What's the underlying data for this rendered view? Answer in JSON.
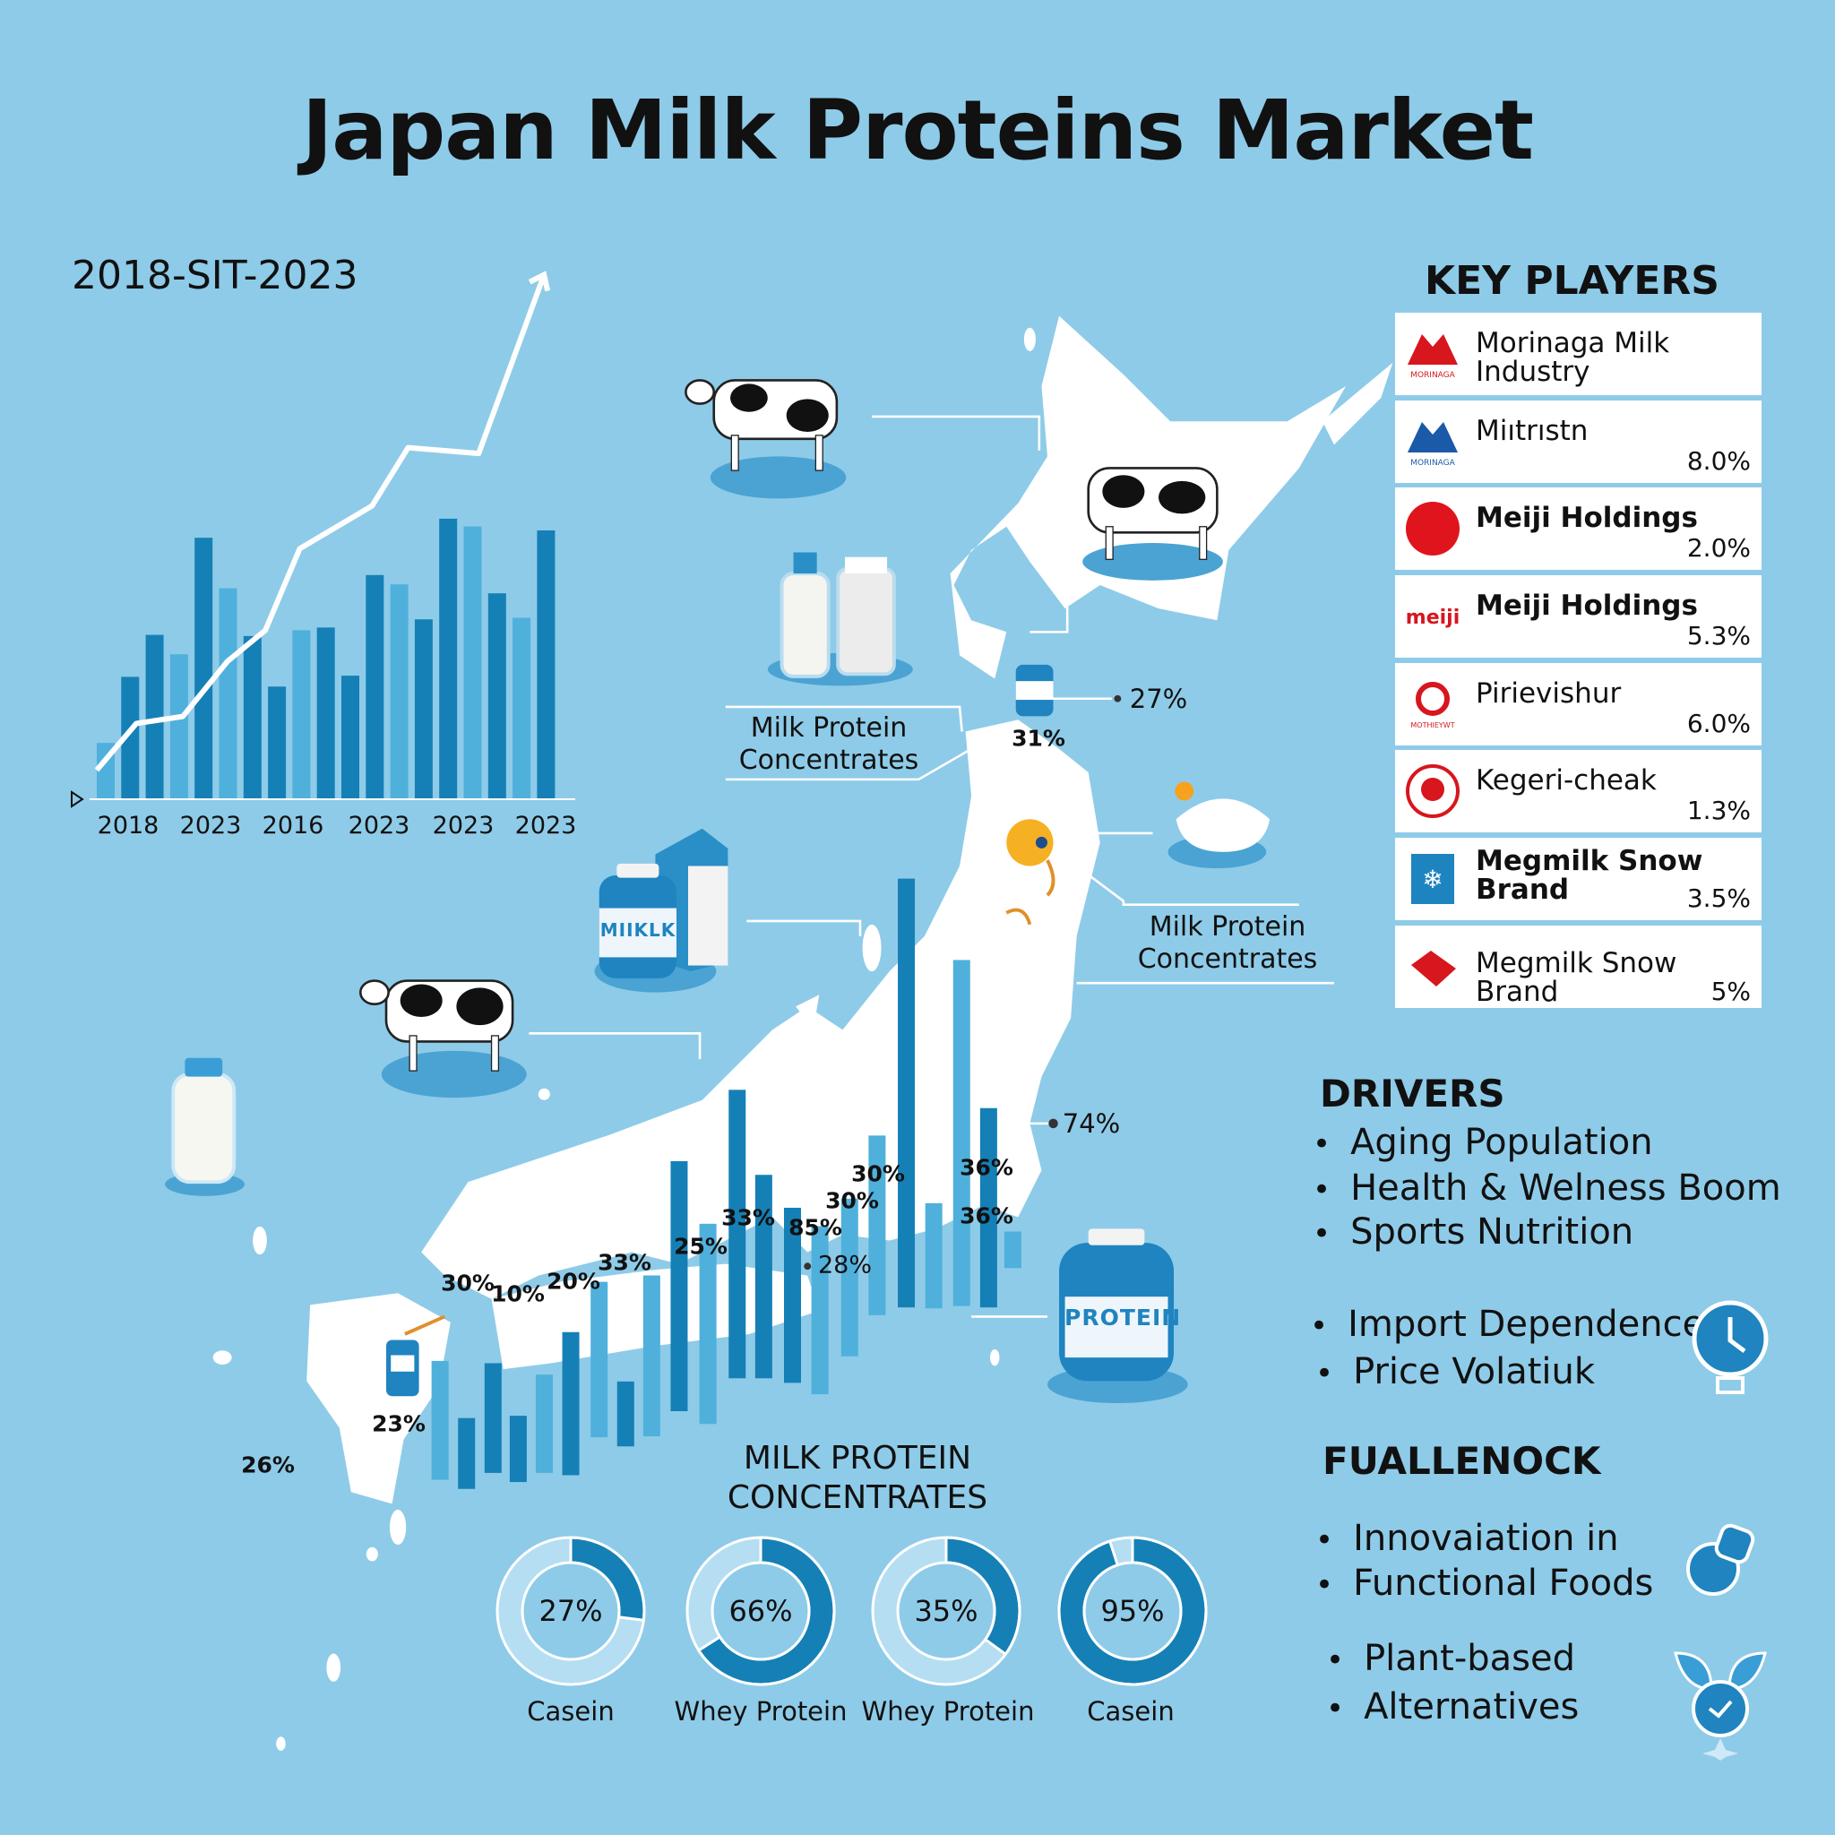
{
  "title": "Japan Milk Proteins Market",
  "colors": {
    "background": "#8ecbe8",
    "dark_bar": "#1580b6",
    "light_bar": "#4fb0dc",
    "map": "#ffffff",
    "text": "#111111",
    "logo_red": "#d7161e",
    "logo_blue": "#1a5aa8"
  },
  "chart_data": [
    {
      "type": "bar",
      "title": "2018-SIT-2023",
      "tick_labels": [
        "2018",
        "2023",
        "2016",
        "2023",
        "2023",
        "2023"
      ],
      "values": [
        14.5,
        31.5,
        42.3,
        37.3,
        67.3,
        54.3,
        42,
        29,
        43.5,
        44.2,
        31.8,
        57.7,
        55.3,
        46.3,
        72.2,
        70.2,
        53,
        46.7,
        69.2
      ],
      "bar_shade": [
        "light",
        "dark",
        "dark",
        "light",
        "dark",
        "light",
        "dark",
        "dark",
        "light",
        "dark",
        "dark",
        "dark",
        "light",
        "dark",
        "dark",
        "light",
        "dark",
        "light",
        "dark"
      ],
      "trend_line": [
        7.5,
        19.5,
        21.3,
        35.5,
        43.5,
        64.5,
        75.5,
        90.5,
        89,
        135
      ],
      "trend_arrow": true,
      "grid": false
    },
    {
      "type": "bar",
      "description_labels": "map overlay bars with percentage labels",
      "labels": [
        "30%",
        "10%",
        "20%",
        "33%",
        "25%",
        "33%",
        "85%",
        "30%",
        "30%",
        "36%",
        "36%",
        "28%",
        "74%",
        "27%",
        "31%",
        "23%",
        "26%"
      ]
    },
    {
      "type": "pie",
      "title": "MILK PROTEIN CONCENTRATES",
      "slices": [
        {
          "label": "Casein",
          "value": 27
        },
        {
          "label": "Whey Protein",
          "value": 66
        },
        {
          "label": "Whey Protein",
          "value": 35
        },
        {
          "label": "Casein",
          "value": 95
        }
      ]
    }
  ],
  "map_labels": [
    "Milk Protein\nConcentrates",
    "Milk Protein\nConcentrates"
  ],
  "bottle_labels": {
    "milk_jar": "MIIKLK",
    "protein_jar": "PROTEIN"
  },
  "key_players": {
    "title": "KEY PLAYERS",
    "items": [
      {
        "name": "Morinaga Milk Industry",
        "share": "",
        "logo": "morinaga-red",
        "logo_text": "MORINAGA"
      },
      {
        "name": "Miıtrıstn",
        "share": "8.0%",
        "logo": "morinaga-blue",
        "logo_text": "MORINAGA"
      },
      {
        "name": "Meiji Holdings",
        "share": "2.0%",
        "logo": "red-circle"
      },
      {
        "name": "Meiji Holdings",
        "share": "5.3%",
        "logo": "meiji-wordmark",
        "logo_text": "meiji"
      },
      {
        "name": "Pirievishur",
        "share": "6.0%",
        "logo": "red-swirl",
        "logo_text": "MOTHIEYWT"
      },
      {
        "name": "Kegeri-cheak",
        "share": "1.3%",
        "logo": "red-emblem"
      },
      {
        "name": "Megmilk Snow\nBrand",
        "share": "3.5%",
        "logo": "blue-snowflake"
      },
      {
        "name": "Megmilk Snow Brand",
        "share": "5%",
        "logo": "red-ribbon"
      }
    ]
  },
  "drivers": {
    "title": "DRIVERS",
    "items": [
      "Aging Population",
      "Health & Welness Boom",
      "Sports Nutrition"
    ],
    "items2": [
      "Import Dependence",
      "Price Volatiuk"
    ]
  },
  "challenges": {
    "title": "FUALLENOCK",
    "items": [
      "Innovaiation in",
      "Functional Foods"
    ],
    "items2": [
      "Plant-based",
      "Alternatives"
    ]
  },
  "icons": [
    "clock-icon",
    "food-icon",
    "leaf-clock-icon",
    "cow-icon",
    "milk-bottle-icon",
    "protein-jar-icon",
    "powder-bowl-icon",
    "location-pin-icon"
  ]
}
